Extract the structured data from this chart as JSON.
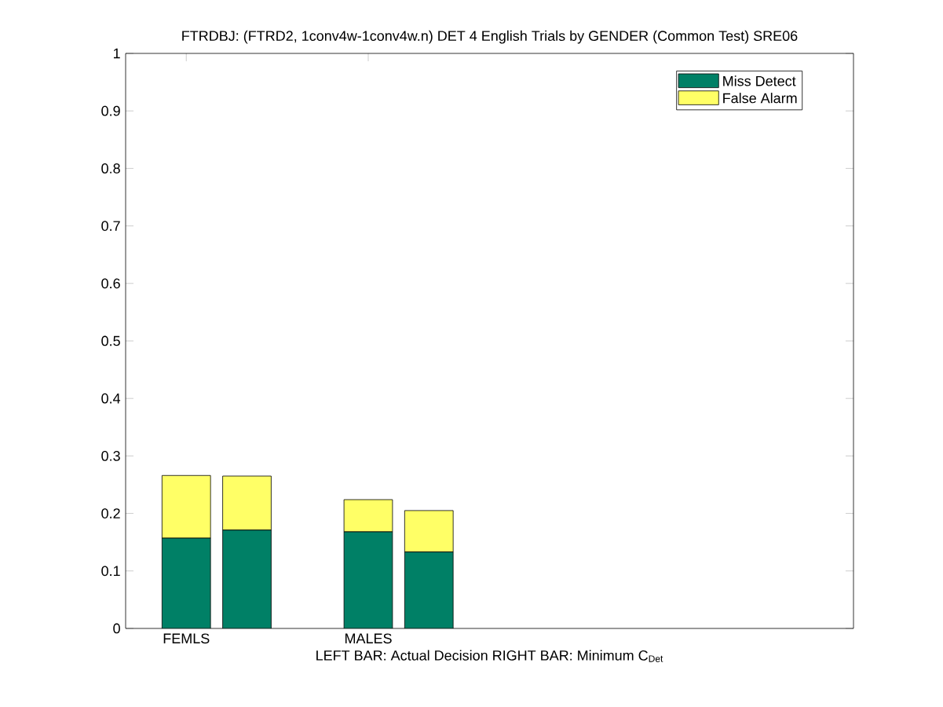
{
  "chart_data": {
    "type": "bar",
    "stacked": true,
    "title": "FTRDBJ: (FTRD2, 1conv4w-1conv4w.n) DET 4 English Trials by GENDER (Common Test) SRE06",
    "xlabel": "LEFT BAR: Actual Decision     RIGHT BAR: Minimum C$_{Det}$",
    "categories": [
      "FEMLS",
      null,
      null,
      "MALES",
      null,
      null,
      null,
      null,
      null,
      null,
      null
    ],
    "series": [
      {
        "name": "Miss Detect",
        "color": "#008066",
        "values": [
          0.157,
          0.171,
          null,
          0.168,
          0.133,
          null,
          null,
          null,
          null,
          null,
          null
        ]
      },
      {
        "name": "False Alarm",
        "color": "#ffff66",
        "values": [
          0.109,
          0.094,
          null,
          0.056,
          0.072,
          null,
          null,
          null,
          null,
          null,
          null
        ]
      }
    ],
    "ylim": [
      0,
      1
    ],
    "yticks": [
      0,
      0.1,
      0.2,
      0.3,
      0.4,
      0.5,
      0.6,
      0.7,
      0.8,
      0.9,
      1
    ],
    "legend": "top right"
  }
}
